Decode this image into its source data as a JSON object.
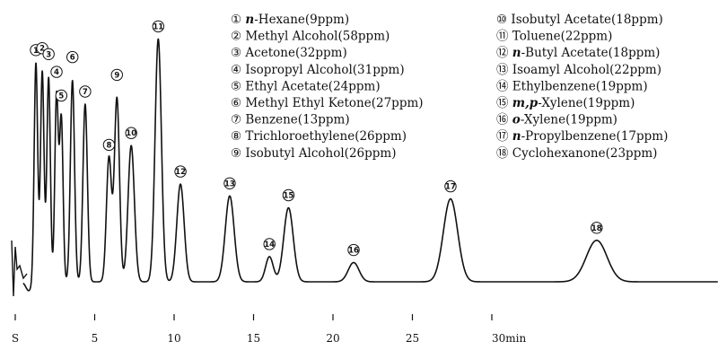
{
  "chart_data": {
    "type": "line",
    "xlabel": "",
    "ylabel": "",
    "title": "",
    "xlim": [
      0,
      31
    ],
    "x_unit_label": "min",
    "start_label": "S",
    "x_ticks": [
      {
        "value": 0,
        "label": "S"
      },
      {
        "value": 5,
        "label": "5"
      },
      {
        "value": 10,
        "label": "10"
      },
      {
        "value": 15,
        "label": "15"
      },
      {
        "value": 20,
        "label": "20"
      },
      {
        "value": 25,
        "label": "25"
      },
      {
        "value": 30,
        "label": "30min"
      }
    ],
    "peaks": [
      {
        "id": "1",
        "symbol": "①",
        "rt": 1.3,
        "height": 0.74,
        "width": 0.11
      },
      {
        "id": "2",
        "symbol": "②",
        "rt": 1.7,
        "height": 0.71,
        "width": 0.11
      },
      {
        "id": "3",
        "symbol": "③",
        "rt": 2.1,
        "height": 0.69,
        "width": 0.11
      },
      {
        "id": "4",
        "symbol": "④",
        "rt": 2.6,
        "height": 0.63,
        "width": 0.11
      },
      {
        "id": "5",
        "symbol": "⑤",
        "rt": 2.9,
        "height": 0.55,
        "width": 0.11
      },
      {
        "id": "6",
        "symbol": "⑥",
        "rt": 3.6,
        "height": 0.68,
        "width": 0.13
      },
      {
        "id": "7",
        "symbol": "⑦",
        "rt": 4.4,
        "height": 0.6,
        "width": 0.14
      },
      {
        "id": "8",
        "symbol": "⑧",
        "rt": 5.9,
        "height": 0.42,
        "width": 0.16
      },
      {
        "id": "9",
        "symbol": "⑨",
        "rt": 6.4,
        "height": 0.62,
        "width": 0.16
      },
      {
        "id": "10",
        "symbol": "⑩",
        "rt": 7.3,
        "height": 0.46,
        "width": 0.2
      },
      {
        "id": "11",
        "symbol": "⑪",
        "rt": 9.0,
        "height": 0.82,
        "width": 0.2
      },
      {
        "id": "12",
        "symbol": "⑫",
        "rt": 10.4,
        "height": 0.33,
        "width": 0.23
      },
      {
        "id": "13",
        "symbol": "⑬",
        "rt": 13.5,
        "height": 0.29,
        "width": 0.28
      },
      {
        "id": "14",
        "symbol": "⑭",
        "rt": 16.0,
        "height": 0.085,
        "width": 0.24
      },
      {
        "id": "15",
        "symbol": "⑮",
        "rt": 17.2,
        "height": 0.25,
        "width": 0.3
      },
      {
        "id": "16",
        "symbol": "⑯",
        "rt": 21.3,
        "height": 0.065,
        "width": 0.34
      },
      {
        "id": "17",
        "symbol": "⑰",
        "rt": 27.4,
        "height": 0.28,
        "width": 0.45
      },
      {
        "id": "18",
        "symbol": "⑱",
        "rt": 36.6,
        "height": 0.14,
        "width": 0.65
      }
    ],
    "legend": {
      "placement": "top-right",
      "columns": [
        [
          {
            "symbol": "①",
            "prefix": "n",
            "name": "-Hexane(9ppm)"
          },
          {
            "symbol": "②",
            "prefix": "",
            "name": "Methyl Alcohol(58ppm)"
          },
          {
            "symbol": "③",
            "prefix": "",
            "name": "Acetone(32ppm)"
          },
          {
            "symbol": "④",
            "prefix": "",
            "name": "Isopropyl Alcohol(31ppm)"
          },
          {
            "symbol": "⑤",
            "prefix": "",
            "name": "Ethyl Acetate(24ppm)"
          },
          {
            "symbol": "⑥",
            "prefix": "",
            "name": "Methyl Ethyl Ketone(27ppm)"
          },
          {
            "symbol": "⑦",
            "prefix": "",
            "name": "Benzene(13ppm)"
          },
          {
            "symbol": "⑧",
            "prefix": "",
            "name": "Trichloroethylene(26ppm)"
          },
          {
            "symbol": "⑨",
            "prefix": "",
            "name": "Isobutyl Alcohol(26ppm)"
          }
        ],
        [
          {
            "symbol": "⑩",
            "prefix": "",
            "name": "Isobutyl Acetate(18ppm)"
          },
          {
            "symbol": "⑪",
            "prefix": "",
            "name": "Toluene(22ppm)"
          },
          {
            "symbol": "⑫",
            "prefix": "n",
            "name": "-Butyl Acetate(18ppm)"
          },
          {
            "symbol": "⑬",
            "prefix": "",
            "name": "Isoamyl Alcohol(22ppm)"
          },
          {
            "symbol": "⑭",
            "prefix": "",
            "name": "Ethylbenzene(19ppm)"
          },
          {
            "symbol": "⑮",
            "prefix": "m,p",
            "name": "-Xylene(19ppm)"
          },
          {
            "symbol": "⑯",
            "prefix": "o",
            "name": "-Xylene(19ppm)"
          },
          {
            "symbol": "⑰",
            "prefix": "n",
            "name": "-Propylbenzene(17ppm)"
          },
          {
            "symbol": "⑱",
            "prefix": "",
            "name": "Cyclohexanone(23ppm)"
          }
        ]
      ]
    }
  }
}
